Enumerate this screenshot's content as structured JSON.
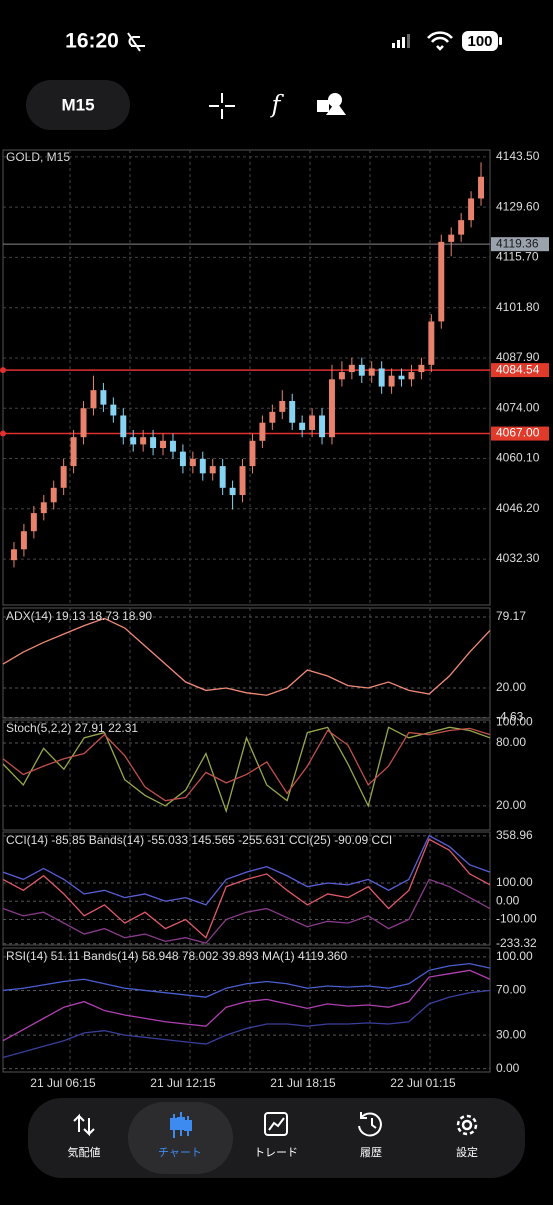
{
  "status_bar": {
    "time": "16:20",
    "battery": "100"
  },
  "toolbar": {
    "timeframe": "M15"
  },
  "main_chart": {
    "header": "GOLD, M15",
    "ylim": [
      4019.6,
      4145.4
    ],
    "yticks": [
      {
        "value": 4143.5,
        "label": "4143.50"
      },
      {
        "value": 4129.6,
        "label": "4129.60"
      },
      {
        "value": 4115.7,
        "label": "4115.70"
      },
      {
        "value": 4101.8,
        "label": "4101.80"
      },
      {
        "value": 4087.9,
        "label": "4087.90"
      },
      {
        "value": 4074,
        "label": "4074.00"
      },
      {
        "value": 4060.1,
        "label": "4060.10"
      },
      {
        "value": 4046.2,
        "label": "4046.20"
      },
      {
        "value": 4032.3,
        "label": "4032.30"
      }
    ],
    "bid": {
      "value": 4119.36,
      "label": "4119.36"
    },
    "levels": [
      {
        "value": 4084.54,
        "label": "4084.54"
      },
      {
        "value": 4067,
        "label": "4067.00"
      }
    ],
    "up_color": "#e8826c",
    "down_color": "#86d4f2",
    "candles": [
      [
        4032,
        4037,
        4030,
        4035
      ],
      [
        4035,
        4042,
        4033,
        4040
      ],
      [
        4040,
        4047,
        4038,
        4045
      ],
      [
        4045,
        4050,
        4043,
        4048
      ],
      [
        4048,
        4054,
        4046,
        4052
      ],
      [
        4052,
        4060,
        4050,
        4058
      ],
      [
        4058,
        4068,
        4056,
        4066
      ],
      [
        4066,
        4076,
        4064,
        4074
      ],
      [
        4074,
        4083,
        4072,
        4079
      ],
      [
        4079,
        4081,
        4073,
        4075
      ],
      [
        4075,
        4077,
        4070,
        4072
      ],
      [
        4072,
        4074,
        4064,
        4066
      ],
      [
        4066,
        4068,
        4062,
        4064
      ],
      [
        4064,
        4068,
        4062,
        4066
      ],
      [
        4066,
        4068,
        4061,
        4063
      ],
      [
        4063,
        4067,
        4061,
        4065
      ],
      [
        4065,
        4067,
        4060,
        4062
      ],
      [
        4062,
        4064,
        4056,
        4058
      ],
      [
        4058,
        4062,
        4056,
        4060
      ],
      [
        4060,
        4062,
        4054,
        4056
      ],
      [
        4056,
        4060,
        4054,
        4058
      ],
      [
        4058,
        4060,
        4050,
        4052
      ],
      [
        4052,
        4054,
        4046,
        4050
      ],
      [
        4050,
        4060,
        4048,
        4058
      ],
      [
        4058,
        4067,
        4056,
        4065
      ],
      [
        4065,
        4072,
        4063,
        4070
      ],
      [
        4070,
        4075,
        4068,
        4073
      ],
      [
        4073,
        4079,
        4071,
        4076
      ],
      [
        4076,
        4078,
        4068,
        4070
      ],
      [
        4070,
        4072,
        4066,
        4068
      ],
      [
        4068,
        4074,
        4066,
        4072
      ],
      [
        4072,
        4074,
        4064,
        4066
      ],
      [
        4066,
        4086,
        4064,
        4082
      ],
      [
        4082,
        4087,
        4080,
        4084
      ],
      [
        4084,
        4088,
        4082,
        4086
      ],
      [
        4086,
        4088,
        4081,
        4083
      ],
      [
        4083,
        4087,
        4081,
        4085
      ],
      [
        4085,
        4087,
        4078,
        4080
      ],
      [
        4080,
        4085,
        4078,
        4083
      ],
      [
        4083,
        4085,
        4080,
        4082
      ],
      [
        4082,
        4086,
        4080,
        4084
      ],
      [
        4084,
        4088,
        4082,
        4086
      ],
      [
        4086,
        4100,
        4084,
        4098
      ],
      [
        4098,
        4122,
        4096,
        4120
      ],
      [
        4120,
        4124,
        4116,
        4122
      ],
      [
        4122,
        4128,
        4120,
        4126
      ],
      [
        4126,
        4134,
        4124,
        4132
      ],
      [
        4132,
        4142,
        4130,
        4138
      ]
    ]
  },
  "panels": [
    {
      "header": "ADX(14) 19.13 18.73 18.90",
      "ylim": [
        -5,
        86.7
      ],
      "yticks": [
        {
          "value": 79.17,
          "label": "79.17"
        },
        {
          "value": 20,
          "label": "20.00"
        },
        {
          "value": -4.63,
          "label": "-4.63"
        }
      ],
      "series": [
        {
          "color": "#f08a78",
          "values": [
            40,
            50,
            58,
            65,
            72,
            78,
            70,
            55,
            40,
            25,
            18,
            20,
            16,
            14,
            20,
            35,
            30,
            22,
            20,
            25,
            18,
            15,
            30,
            50,
            68
          ]
        }
      ]
    },
    {
      "header": "Stoch(5,2,2) 27.91 22.31",
      "ylim": [
        -3,
        102
      ],
      "yticks": [
        {
          "value": 100,
          "label": "100.00"
        },
        {
          "value": 80,
          "label": "80.00"
        },
        {
          "value": 20,
          "label": "20.00"
        }
      ],
      "series": [
        {
          "color": "#9aa84a",
          "values": [
            60,
            40,
            75,
            55,
            85,
            90,
            45,
            30,
            20,
            35,
            70,
            15,
            85,
            40,
            25,
            90,
            95,
            60,
            20,
            95,
            85,
            90,
            95,
            92,
            85
          ]
        },
        {
          "color": "#c0504d",
          "values": [
            65,
            50,
            58,
            65,
            70,
            88,
            68,
            38,
            25,
            28,
            52,
            42,
            50,
            62,
            32,
            58,
            92,
            78,
            40,
            58,
            90,
            88,
            92,
            94,
            88
          ]
        }
      ]
    },
    {
      "header": "CCI(14) -85.85 Bands(14) -55.033 145.565 -255.631 CCI(25) -90.09 CCI",
      "ylim": [
        -240,
        380
      ],
      "yticks": [
        {
          "value": 358.96,
          "label": "358.96"
        },
        {
          "value": 100,
          "label": "100.00"
        },
        {
          "value": 0,
          "label": "0.00"
        },
        {
          "value": -100,
          "label": "-100.00"
        },
        {
          "value": -233.32,
          "label": "-233.32"
        }
      ],
      "series": [
        {
          "color": "#5b5fd6",
          "values": [
            160,
            120,
            180,
            120,
            40,
            60,
            20,
            40,
            0,
            20,
            -20,
            120,
            160,
            190,
            140,
            80,
            100,
            90,
            120,
            60,
            120,
            360,
            300,
            200,
            160
          ]
        },
        {
          "color": "#e05a6a",
          "values": [
            120,
            60,
            140,
            40,
            -80,
            -20,
            -120,
            -60,
            -150,
            -100,
            -200,
            80,
            120,
            150,
            60,
            -20,
            40,
            20,
            80,
            -40,
            60,
            340,
            280,
            150,
            90
          ]
        },
        {
          "color": "#8a3a8a",
          "values": [
            -40,
            -80,
            -60,
            -120,
            -180,
            -150,
            -200,
            -180,
            -220,
            -200,
            -230,
            -100,
            -60,
            -40,
            -90,
            -140,
            -110,
            -120,
            -80,
            -150,
            -100,
            120,
            80,
            20,
            -40
          ]
        }
      ]
    },
    {
      "header": "RSI(14) 51.11 Bands(14) 58.948 78.002 39.893 MA(1) 4119.360",
      "ylim": [
        -3,
        108
      ],
      "yticks": [
        {
          "value": 100,
          "label": "100.00"
        },
        {
          "value": 70,
          "label": "70.00"
        },
        {
          "value": 30,
          "label": "30.00"
        },
        {
          "value": 0,
          "label": "0.00"
        }
      ],
      "series": [
        {
          "color": "#4a5fd0",
          "values": [
            70,
            72,
            75,
            78,
            80,
            76,
            72,
            70,
            68,
            66,
            64,
            72,
            76,
            78,
            76,
            72,
            74,
            73,
            74,
            72,
            76,
            88,
            92,
            94,
            90
          ]
        },
        {
          "color": "#b040b0",
          "values": [
            25,
            35,
            45,
            55,
            60,
            52,
            48,
            45,
            42,
            40,
            38,
            55,
            60,
            62,
            58,
            54,
            58,
            56,
            57,
            55,
            60,
            82,
            85,
            88,
            80
          ]
        },
        {
          "color": "#3a3f9a",
          "values": [
            10,
            15,
            20,
            25,
            32,
            34,
            30,
            28,
            26,
            24,
            22,
            30,
            36,
            40,
            40,
            38,
            40,
            40,
            41,
            40,
            42,
            58,
            64,
            68,
            70
          ]
        }
      ]
    }
  ],
  "x_labels": [
    "21 Jul 06:15",
    "21 Jul 12:15",
    "21 Jul 18:15",
    "22 Jul 01:15"
  ],
  "nav": [
    "気配値",
    "チャート",
    "トレード",
    "履歴",
    "設定"
  ]
}
